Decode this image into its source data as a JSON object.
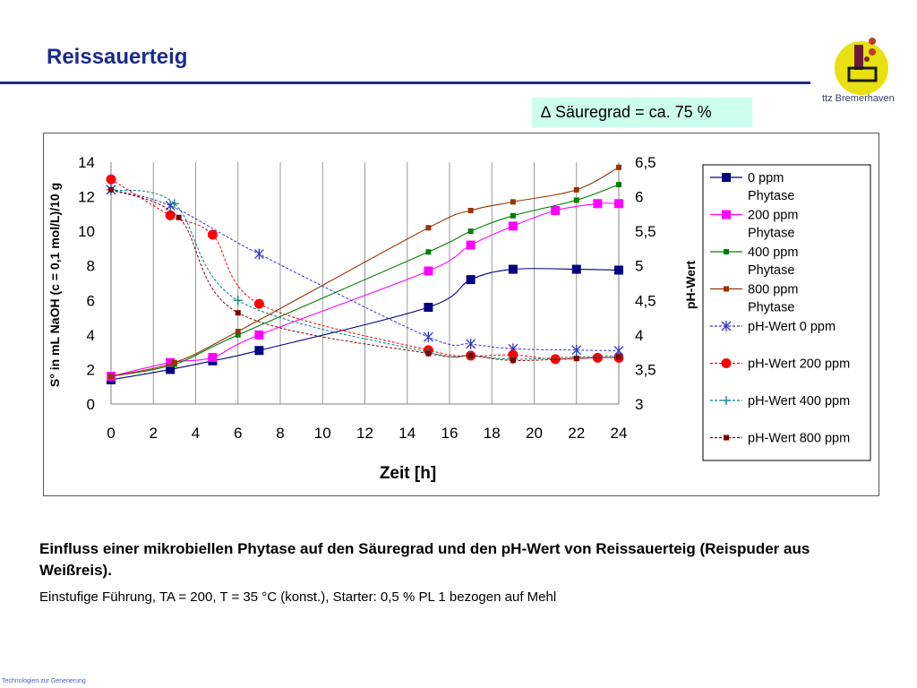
{
  "slide": {
    "title": "Reissauerteig",
    "logo_text": "ttz Bremerhaven",
    "annotation": "∆ Säuregrad = ca. 75 %",
    "caption": "Einfluss einer mikrobiellen Phytase auf den Säuregrad und den pH-Wert von Reissauerteig (Reispuder aus Weißreis).",
    "subcaption": "Einstufige Führung, TA = 200, T = 35 °C (konst.), Starter: 0,5 % PL 1 bezogen auf Mehl",
    "footer": "Technologien zur Generierung"
  },
  "colors": {
    "title": "#1a2b8c",
    "annotation_bg": "#ccffee"
  },
  "chart_data": {
    "type": "line",
    "xlabel": "Zeit [h]",
    "ylabel": "S° in mL NaOH (c = 0,1 mol/L)/10 g",
    "y2label": "pH-Wert",
    "xlim": [
      0,
      24
    ],
    "ylim": [
      0,
      14
    ],
    "y2lim": [
      3,
      6.5
    ],
    "xticks": [
      "0",
      "2",
      "4",
      "6",
      "8",
      "10",
      "12",
      "14",
      "16",
      "18",
      "20",
      "22",
      "24"
    ],
    "yticks": [
      "0",
      "2",
      "4",
      "6",
      "8",
      "10",
      "12",
      "14"
    ],
    "y2ticks": [
      "3",
      "3,5",
      "4",
      "4,5",
      "5",
      "5,5",
      "6",
      "6,5"
    ],
    "grid": "vertical",
    "legend_position": "right",
    "series": [
      {
        "name": "0 ppm Phytase",
        "axis": "left",
        "color": "#000080",
        "marker": "square",
        "dash": false,
        "x": [
          0,
          2.8,
          4.8,
          7,
          15,
          17,
          19,
          22,
          24
        ],
        "y": [
          1.4,
          2.0,
          2.5,
          3.1,
          5.6,
          7.2,
          7.8,
          7.8,
          7.75
        ]
      },
      {
        "name": "200 ppm Phytase",
        "axis": "left",
        "color": "#ff00ff",
        "marker": "square",
        "dash": false,
        "x": [
          0,
          2.8,
          4.8,
          7,
          15,
          17,
          19,
          21,
          23,
          24
        ],
        "y": [
          1.6,
          2.4,
          2.7,
          4.0,
          7.7,
          9.2,
          10.3,
          11.2,
          11.6,
          11.6
        ]
      },
      {
        "name": "400 ppm Phytase",
        "axis": "left",
        "color": "#008000",
        "marker": "smallsquare",
        "dash": false,
        "x": [
          0,
          3,
          6,
          15,
          17,
          19,
          22,
          24
        ],
        "y": [
          1.6,
          2.3,
          4.0,
          8.8,
          10.0,
          10.9,
          11.8,
          12.7
        ]
      },
      {
        "name": "800 ppm Phytase",
        "axis": "left",
        "color": "#993300",
        "marker": "smallsquare",
        "dash": false,
        "x": [
          0,
          3,
          6,
          15,
          17,
          19,
          22,
          24
        ],
        "y": [
          1.6,
          2.4,
          4.2,
          10.2,
          11.2,
          11.7,
          12.4,
          13.7
        ]
      },
      {
        "name": "pH-Wert 0 ppm",
        "axis": "right",
        "color": "#3333cc",
        "marker": "star",
        "dash": true,
        "x": [
          0,
          2.8,
          7,
          15,
          17,
          19,
          22,
          24
        ],
        "y": [
          6.1,
          5.87,
          5.17,
          3.97,
          3.87,
          3.8,
          3.78,
          3.77
        ]
      },
      {
        "name": "pH-Wert 200 ppm",
        "axis": "right",
        "color": "#ff0000",
        "marker": "circle",
        "dash": true,
        "x": [
          0,
          2.8,
          4.8,
          7,
          15,
          17,
          19,
          21,
          23,
          24
        ],
        "y": [
          6.25,
          5.73,
          5.45,
          4.45,
          3.78,
          3.7,
          3.71,
          3.65,
          3.67,
          3.67
        ]
      },
      {
        "name": "pH-Wert 400 ppm",
        "axis": "right",
        "color": "#008080",
        "marker": "plus",
        "dash": true,
        "x": [
          0,
          3,
          6,
          15,
          17,
          19,
          22,
          24
        ],
        "y": [
          6.1,
          5.9,
          4.5,
          3.75,
          3.7,
          3.65,
          3.68,
          3.7
        ]
      },
      {
        "name": "pH-Wert 800 ppm",
        "axis": "right",
        "color": "#800000",
        "marker": "smallsquare",
        "dash": true,
        "x": [
          0,
          3.2,
          6,
          15,
          17,
          19,
          22,
          24
        ],
        "y": [
          6.1,
          5.7,
          4.32,
          3.73,
          3.7,
          3.63,
          3.66,
          3.68
        ]
      }
    ]
  }
}
